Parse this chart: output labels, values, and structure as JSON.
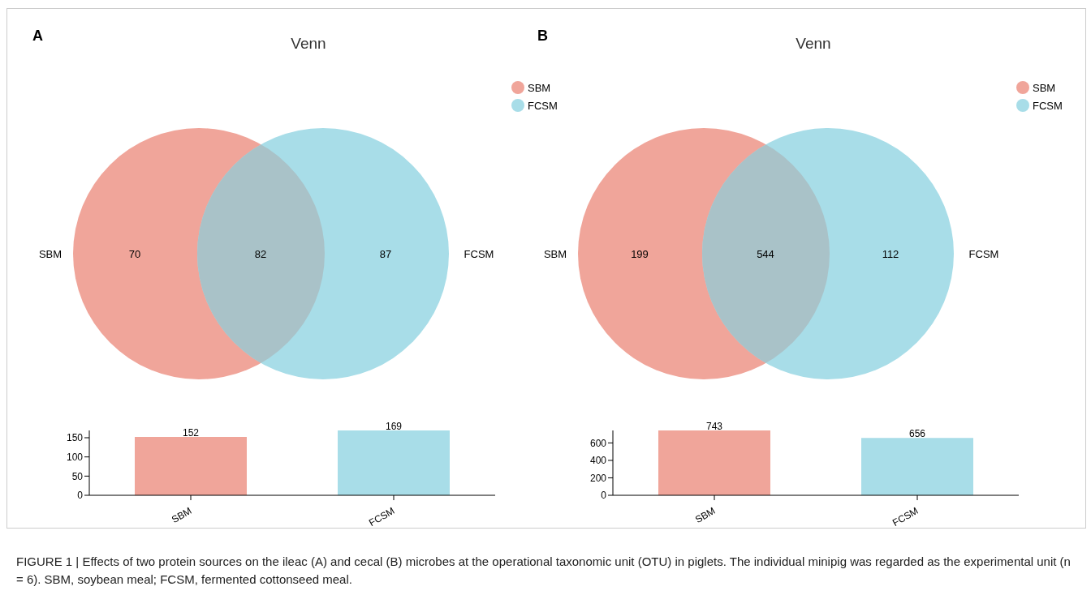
{
  "chart_data": [
    {
      "type": "other",
      "title": "Venn",
      "annotations": [
        "A"
      ],
      "categories": [
        "SBM",
        null,
        "FCSM"
      ],
      "values": [
        70,
        82,
        87
      ],
      "colors": [
        "#f0a59a",
        "#a9c2c8",
        "#a8dde8"
      ],
      "data_labels": true
    },
    {
      "type": "bar",
      "categories": [
        "SBM",
        "FCSM"
      ],
      "values": [
        152,
        169
      ],
      "colors": [
        "#f0a59a",
        "#a8dde8"
      ],
      "ylim": [
        0,
        169
      ],
      "yticks": [
        0,
        50,
        100,
        150
      ],
      "data_labels": true
    },
    {
      "type": "other",
      "title": "Venn",
      "annotations": [
        "B"
      ],
      "categories": [
        "SBM",
        null,
        "FCSM"
      ],
      "values": [
        199,
        544,
        112
      ],
      "colors": [
        "#f0a59a",
        "#a9c2c8",
        "#a8dde8"
      ],
      "data_labels": true
    },
    {
      "type": "bar",
      "categories": [
        "SBM",
        "FCSM"
      ],
      "values": [
        743,
        656
      ],
      "colors": [
        "#f0a59a",
        "#a8dde8"
      ],
      "ylim": [
        0,
        743
      ],
      "yticks": [
        0,
        200,
        400,
        600
      ],
      "data_labels": true,
      "annotations": [
        "FIGURE 1 | Effects of two protein sources on the ileac (A) and cecal (B) microbes at the operational taxonomic unit (OTU) in piglets. The individual minipig was regarded as the experimental unit (n = 6). SBM, soybean meal; FCSM, fermented cottonseed meal."
      ]
    }
  ]
}
